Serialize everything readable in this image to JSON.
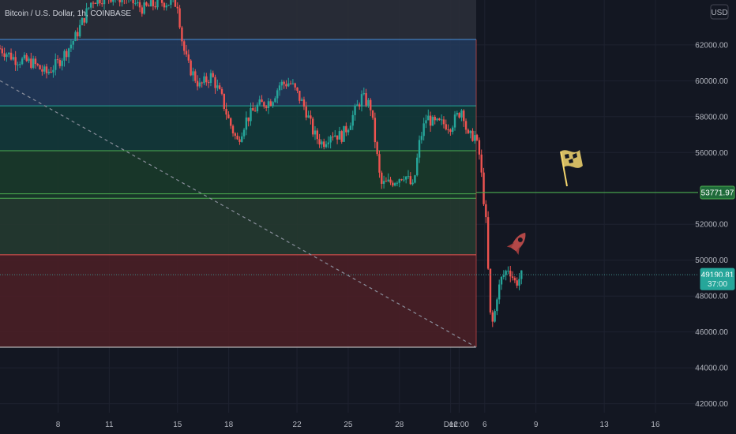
{
  "header": {
    "symbol": "Bitcoin / U.S. Dollar, 1h, COINBASE"
  },
  "currency_button": {
    "label": "USD"
  },
  "colors": {
    "background": "#131722",
    "price_axis_bg": "#131722",
    "grid": "#1e2230",
    "axis_text": "#b2b5be",
    "up": "#26a69a",
    "down": "#ef5350",
    "fib_top_zone": "#2a2e39",
    "fib_blue_zone": "#22395a",
    "fib_teal_zone": "#13393a",
    "fib_green_zone": "#1a3a2a",
    "fib_lightgreen_zone": "#253a30",
    "fib_red_zone": "#4a1f26",
    "green_line": "#4caf50",
    "blue_line": "#4a90d9",
    "teal_line": "#26a69a",
    "red_line": "#ef5350",
    "flag": "#f5d76e",
    "rocket": "#b34848"
  },
  "chart_data": {
    "type": "candlestick",
    "title": "Bitcoin / U.S. Dollar, 1h, COINBASE",
    "currency": "USD",
    "y_axis": {
      "range": [
        41500,
        64500
      ],
      "ticks": [
        "62000.00",
        "60000.00",
        "58000.00",
        "56000.00",
        "52000.00",
        "50000.00",
        "48000.00",
        "46000.00",
        "44000.00",
        "42000.00"
      ],
      "tick_values": [
        62000,
        60000,
        58000,
        56000,
        52000,
        50000,
        48000,
        46000,
        44000,
        42000
      ]
    },
    "x_axis": {
      "ticks": [
        "8",
        "11",
        "15",
        "18",
        "22",
        "25",
        "28",
        "Dec",
        "12:00",
        "6",
        "9",
        "13",
        "16"
      ],
      "tick_values": [
        8,
        11,
        15,
        18,
        22,
        25,
        28,
        31,
        31.5,
        33,
        36,
        40,
        43
      ]
    },
    "x_range": [
      4.6,
      45.5
    ],
    "price_tags": [
      {
        "label": "53771.97",
        "value": 53772,
        "style": "green"
      },
      {
        "label": "49190.81",
        "value": 49190.81,
        "style": "green-filled"
      },
      {
        "label": "37:00",
        "value": 48700,
        "style": "countdown"
      }
    ],
    "fib_zones": [
      {
        "from": 62300,
        "to": 64500,
        "color_key": "fib_top_zone"
      },
      {
        "from": 58600,
        "to": 62300,
        "color_key": "fib_blue_zone"
      },
      {
        "from": 56100,
        "to": 58600,
        "color_key": "fib_teal_zone"
      },
      {
        "from": 53450,
        "to": 56100,
        "color_key": "fib_green_zone"
      },
      {
        "from": 50300,
        "to": 53450,
        "color_key": "fib_lightgreen_zone"
      },
      {
        "from": 45150,
        "to": 50300,
        "color_key": "fib_red_zone"
      }
    ],
    "fib_lines": [
      {
        "value": 62300,
        "color_key": "blue_line"
      },
      {
        "value": 58600,
        "color_key": "teal_line"
      },
      {
        "value": 56100,
        "color_key": "green_line"
      },
      {
        "value": 53700,
        "color_key": "green_line"
      },
      {
        "value": 53450,
        "color_key": "green_line"
      },
      {
        "value": 50300,
        "color_key": "red_line"
      }
    ],
    "fib_x_end": 32.5,
    "trendline": {
      "from": [
        4.6,
        60000
      ],
      "to": [
        32.5,
        45150
      ],
      "style": "dashed"
    },
    "horizontal_line": {
      "value": 53772,
      "from_x": 32.5,
      "color_key": "green_line"
    },
    "current_price_line": {
      "value": 49190.81,
      "style": "dotted"
    },
    "anchors": [
      {
        "x": 4.6,
        "close": 61800
      },
      {
        "x": 5.5,
        "close": 61200
      },
      {
        "x": 6.5,
        "close": 61000
      },
      {
        "x": 7.3,
        "close": 60400
      },
      {
        "x": 8,
        "close": 61000
      },
      {
        "x": 8.6,
        "close": 61800
      },
      {
        "x": 9,
        "close": 62400
      },
      {
        "x": 10,
        "close": 64500
      },
      {
        "x": 11,
        "close": 64700
      },
      {
        "x": 12,
        "close": 64600
      },
      {
        "x": 13,
        "close": 64000
      },
      {
        "x": 14,
        "close": 64400
      },
      {
        "x": 15,
        "close": 64300
      },
      {
        "x": 15.3,
        "close": 62000
      },
      {
        "x": 15.6,
        "close": 60900
      },
      {
        "x": 16.3,
        "close": 59700
      },
      {
        "x": 17,
        "close": 60300
      },
      {
        "x": 17.6,
        "close": 59000
      },
      {
        "x": 18,
        "close": 57800
      },
      {
        "x": 18.5,
        "close": 56600
      },
      {
        "x": 19,
        "close": 57800
      },
      {
        "x": 19.7,
        "close": 58600
      },
      {
        "x": 20.5,
        "close": 58900
      },
      {
        "x": 21,
        "close": 59800
      },
      {
        "x": 21.6,
        "close": 59900
      },
      {
        "x": 22,
        "close": 59300
      },
      {
        "x": 22.5,
        "close": 58400
      },
      {
        "x": 23,
        "close": 57000
      },
      {
        "x": 23.5,
        "close": 56500
      },
      {
        "x": 24,
        "close": 57100
      },
      {
        "x": 24.6,
        "close": 56900
      },
      {
        "x": 25,
        "close": 57500
      },
      {
        "x": 25.4,
        "close": 58300
      },
      {
        "x": 25.8,
        "close": 59100
      },
      {
        "x": 26.3,
        "close": 58600
      },
      {
        "x": 26.6,
        "close": 56500
      },
      {
        "x": 26.9,
        "close": 54200
      },
      {
        "x": 27.4,
        "close": 54300
      },
      {
        "x": 27.8,
        "close": 54500
      },
      {
        "x": 28.3,
        "close": 54800
      },
      {
        "x": 28.8,
        "close": 54000
      },
      {
        "x": 29.2,
        "close": 56700
      },
      {
        "x": 29.6,
        "close": 58000
      },
      {
        "x": 30,
        "close": 57600
      },
      {
        "x": 30.6,
        "close": 57600
      },
      {
        "x": 31,
        "close": 57500
      },
      {
        "x": 31.3,
        "close": 57900
      },
      {
        "x": 31.7,
        "close": 58500
      },
      {
        "x": 32,
        "close": 56800
      },
      {
        "x": 32.4,
        "close": 57000
      },
      {
        "x": 32.7,
        "close": 55800
      },
      {
        "x": 32.9,
        "close": 53800
      },
      {
        "x": 33.1,
        "close": 51800
      },
      {
        "x": 33.3,
        "close": 47000
      },
      {
        "x": 33.5,
        "close": 46400
      },
      {
        "x": 33.7,
        "close": 48000
      },
      {
        "x": 34.0,
        "close": 49000
      },
      {
        "x": 34.4,
        "close": 49600
      },
      {
        "x": 34.8,
        "close": 48700
      },
      {
        "x": 35.2,
        "close": 49191
      }
    ]
  }
}
